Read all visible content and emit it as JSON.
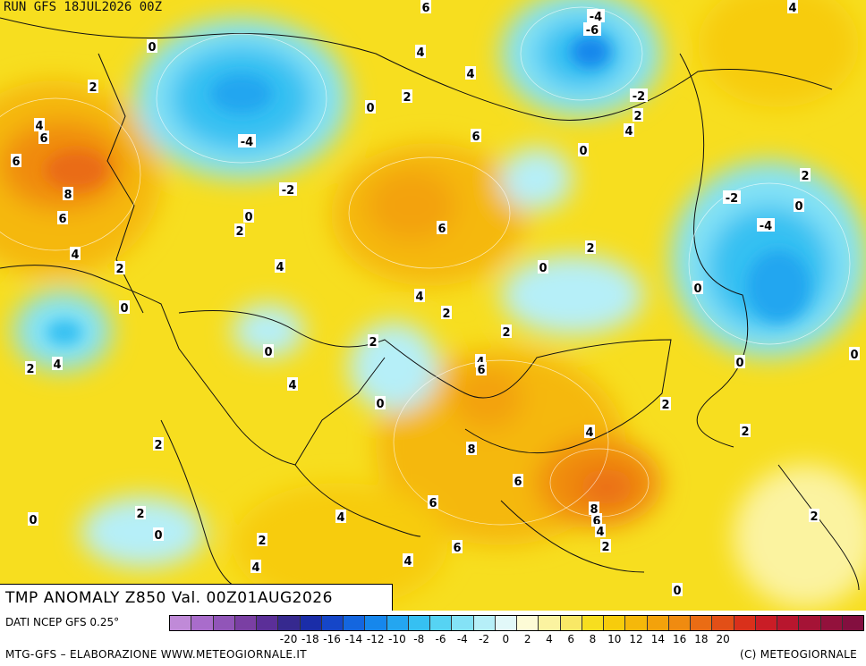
{
  "header": {
    "run_label": "RUN GFS 18JUL2026 00Z"
  },
  "map": {
    "title": "TMP ANOMALY Z850 Val. 00Z01AUG2026",
    "base_color": "#f7de1f",
    "labels": [
      {
        "t": "6"
      },
      {
        "t": "-4"
      },
      {
        "t": "-6"
      },
      {
        "t": "4"
      },
      {
        "t": "0"
      },
      {
        "t": "4"
      },
      {
        "t": "2"
      },
      {
        "t": "4"
      },
      {
        "t": "2"
      },
      {
        "t": "0"
      },
      {
        "t": "-2"
      },
      {
        "t": "4"
      },
      {
        "t": "6"
      },
      {
        "t": "2"
      },
      {
        "t": "-4"
      },
      {
        "t": "6"
      },
      {
        "t": "4"
      },
      {
        "t": "6"
      },
      {
        "t": "0"
      },
      {
        "t": "8"
      },
      {
        "t": "-2"
      },
      {
        "t": "2"
      },
      {
        "t": "6"
      },
      {
        "t": "0"
      },
      {
        "t": "2"
      },
      {
        "t": "-2"
      },
      {
        "t": "0"
      },
      {
        "t": "-4"
      },
      {
        "t": "4"
      },
      {
        "t": "2"
      },
      {
        "t": "4"
      },
      {
        "t": "0"
      },
      {
        "t": "2"
      },
      {
        "t": "6"
      },
      {
        "t": "0"
      },
      {
        "t": "0"
      },
      {
        "t": "4"
      },
      {
        "t": "2"
      },
      {
        "t": "0"
      },
      {
        "t": "2"
      },
      {
        "t": "2"
      },
      {
        "t": "4"
      },
      {
        "t": "4"
      },
      {
        "t": "6"
      },
      {
        "t": "0"
      },
      {
        "t": "0"
      },
      {
        "t": "4"
      },
      {
        "t": "0"
      },
      {
        "t": "2"
      },
      {
        "t": "2"
      },
      {
        "t": "8"
      },
      {
        "t": "4"
      },
      {
        "t": "2"
      },
      {
        "t": "6"
      },
      {
        "t": "2"
      },
      {
        "t": "0"
      },
      {
        "t": "6"
      },
      {
        "t": "4"
      },
      {
        "t": "0"
      },
      {
        "t": "8"
      },
      {
        "t": "6"
      },
      {
        "t": "4"
      },
      {
        "t": "2"
      },
      {
        "t": "2"
      },
      {
        "t": "4"
      },
      {
        "t": "2"
      },
      {
        "t": "6"
      },
      {
        "t": "4"
      },
      {
        "t": "0"
      },
      {
        "t": "2"
      }
    ]
  },
  "legend": {
    "source_label": "DATI NCEP GFS 0.25°",
    "colors": [
      "#c08ad8",
      "#a96ccb",
      "#9155b8",
      "#7a3fa3",
      "#5b2f98",
      "#36298f",
      "#1a2da8",
      "#1546c8",
      "#1466df",
      "#1687ec",
      "#24a6f0",
      "#36c0f2",
      "#56d3f3",
      "#84e2f6",
      "#b6eff8",
      "#e2f8f9",
      "#fdfbd6",
      "#fbf3a0",
      "#f9e866",
      "#f7de1f",
      "#f7cc0c",
      "#f5b80a",
      "#f3a20b",
      "#f08b10",
      "#ea6c14",
      "#e24f17",
      "#d9301b",
      "#c91d26",
      "#b8162e",
      "#a51336",
      "#93113c",
      "#830f3f"
    ],
    "ticks": [
      "-20",
      "-18",
      "-16",
      "-14",
      "-12",
      "-10",
      "-8",
      "-6",
      "-4",
      "-2",
      "0",
      "2",
      "4",
      "6",
      "8",
      "10",
      "12",
      "14",
      "16",
      "18",
      "20"
    ],
    "credits_left": "MTG-GFS – ELABORAZIONE WWW.METEOGIORNALE.IT",
    "credits_right": "(C) METEOGIORNALE"
  }
}
